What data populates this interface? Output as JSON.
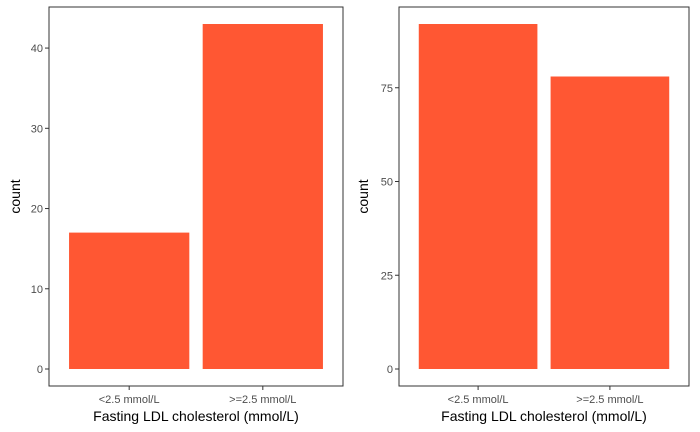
{
  "colors": {
    "bar": "#ff5733",
    "axis": "#333333",
    "tick": "#4d4d4d",
    "background": "#ffffff"
  },
  "chart_data": [
    {
      "type": "bar",
      "categories": [
        "<2.5 mmol/L",
        ">=2.5 mmol/L"
      ],
      "values": [
        17,
        43
      ],
      "xlabel": "Fasting LDL cholesterol (mmol/L)",
      "ylabel": "count",
      "ylim": [
        0,
        45
      ],
      "yticks": [
        0,
        10,
        20,
        30,
        40
      ],
      "grid": false
    },
    {
      "type": "bar",
      "categories": [
        "<2.5 mmol/L",
        ">=2.5 mmol/L"
      ],
      "values": [
        92,
        78
      ],
      "xlabel": "Fasting LDL cholesterol (mmol/L)",
      "ylabel": "count",
      "ylim": [
        0,
        96.5
      ],
      "yticks": [
        0,
        25,
        50,
        75
      ],
      "grid": false
    }
  ]
}
